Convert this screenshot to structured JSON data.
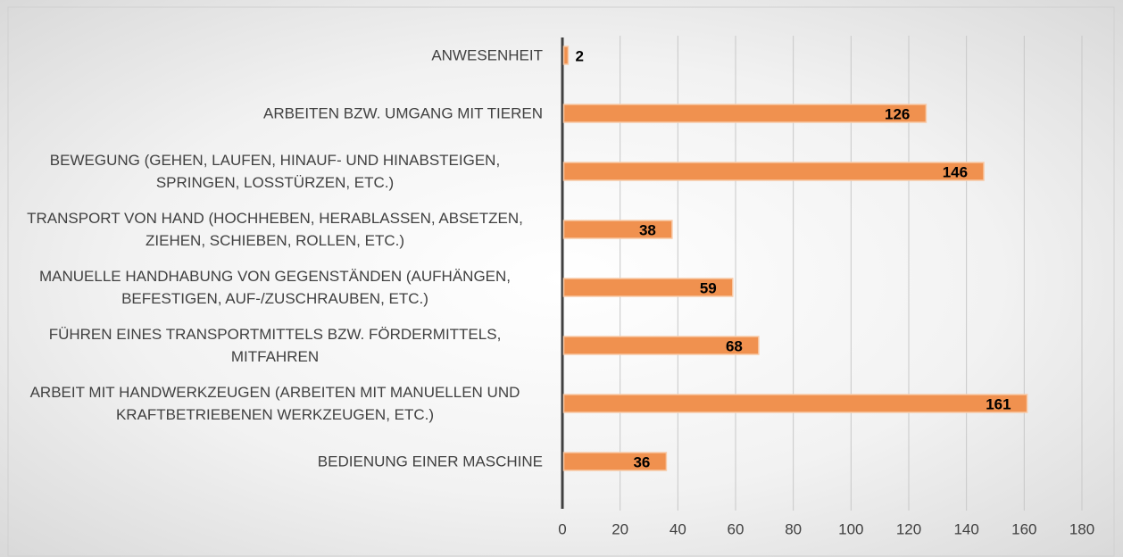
{
  "chart_data": {
    "type": "bar",
    "orientation": "horizontal",
    "categories": [
      "ANWESENHEIT",
      "ARBEITEN BZW. UMGANG MIT TIEREN",
      "BEWEGUNG (GEHEN, LAUFEN, HINAUF- UND HINABSTEIGEN, SPRINGEN, LOSSTÜRZEN, ETC.)",
      "TRANSPORT VON HAND (HOCHHEBEN, HERABLASSEN, ABSETZEN, ZIEHEN, SCHIEBEN, ROLLEN, ETC.)",
      "MANUELLE HANDHABUNG VON GEGENSTÄNDEN (AUFHÄNGEN, BEFESTIGEN, AUF-/ZUSCHRAUBEN, ETC.)",
      "FÜHREN EINES TRANSPORTMITTELS BZW. FÖRDERMITTELS, MITFAHREN",
      "ARBEIT MIT HANDWERKZEUGEN (ARBEITEN MIT MANUELLEN UND KRAFTBETRIEBENEN WERKZEUGEN, ETC.)",
      "BEDIENUNG EINER MASCHINE"
    ],
    "values": [
      2,
      126,
      146,
      38,
      59,
      68,
      161,
      36
    ],
    "color": "#f0914f",
    "xlim": [
      0,
      180
    ],
    "xticks": [
      0,
      20,
      40,
      60,
      80,
      100,
      120,
      140,
      160,
      180
    ],
    "grid": true
  }
}
